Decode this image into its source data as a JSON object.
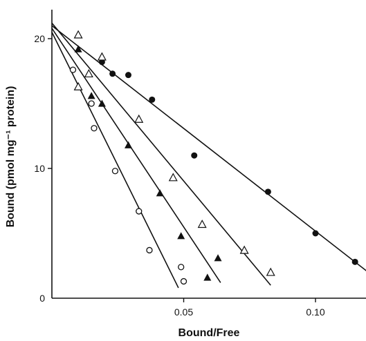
{
  "chart_data": {
    "type": "scatter",
    "title": "",
    "xlabel": "Bound/Free",
    "ylabel": "Bound (pmol mg⁻¹ protein)",
    "xlim": [
      0.0,
      0.12
    ],
    "ylim": [
      0,
      22
    ],
    "x_ticks": [
      {
        "value": 0.05,
        "label": "0.05"
      },
      {
        "value": 0.1,
        "label": "0.10"
      }
    ],
    "y_ticks": [
      {
        "value": 0,
        "label": "0"
      },
      {
        "value": 10,
        "label": "10"
      },
      {
        "value": 20,
        "label": "20"
      }
    ],
    "grid": false,
    "legend": "none",
    "series": [
      {
        "marker": "filled-circle",
        "points": [
          [
            0.019,
            18.2
          ],
          [
            0.023,
            17.3
          ],
          [
            0.029,
            17.2
          ],
          [
            0.038,
            15.3
          ],
          [
            0.054,
            11.0
          ],
          [
            0.082,
            8.2
          ],
          [
            0.1,
            5.0
          ],
          [
            0.115,
            2.8
          ]
        ],
        "fit_line": [
          [
            0.0,
            21.0
          ],
          [
            0.12,
            2.0
          ]
        ]
      },
      {
        "marker": "open-triangle",
        "points": [
          [
            0.01,
            20.3
          ],
          [
            0.019,
            18.6
          ],
          [
            0.01,
            16.3
          ],
          [
            0.014,
            17.3
          ],
          [
            0.033,
            13.8
          ],
          [
            0.046,
            9.3
          ],
          [
            0.057,
            5.7
          ],
          [
            0.073,
            3.7
          ],
          [
            0.083,
            2.0
          ]
        ],
        "fit_line": [
          [
            0.0,
            21.2
          ],
          [
            0.083,
            1.0
          ]
        ]
      },
      {
        "marker": "filled-triangle",
        "points": [
          [
            0.01,
            19.2
          ],
          [
            0.015,
            15.6
          ],
          [
            0.019,
            15.0
          ],
          [
            0.029,
            11.8
          ],
          [
            0.041,
            8.1
          ],
          [
            0.049,
            4.8
          ],
          [
            0.059,
            1.6
          ],
          [
            0.063,
            3.1
          ]
        ],
        "fit_line": [
          [
            0.0,
            20.8
          ],
          [
            0.064,
            1.2
          ]
        ]
      },
      {
        "marker": "open-circle",
        "points": [
          [
            0.008,
            17.6
          ],
          [
            0.015,
            15.0
          ],
          [
            0.016,
            13.1
          ],
          [
            0.024,
            9.8
          ],
          [
            0.033,
            6.7
          ],
          [
            0.037,
            3.7
          ],
          [
            0.049,
            2.4
          ],
          [
            0.05,
            1.3
          ]
        ],
        "fit_line": [
          [
            0.0,
            20.5
          ],
          [
            0.048,
            0.8
          ]
        ]
      }
    ],
    "colors": {
      "ink": "#111111",
      "background": "#ffffff"
    }
  }
}
